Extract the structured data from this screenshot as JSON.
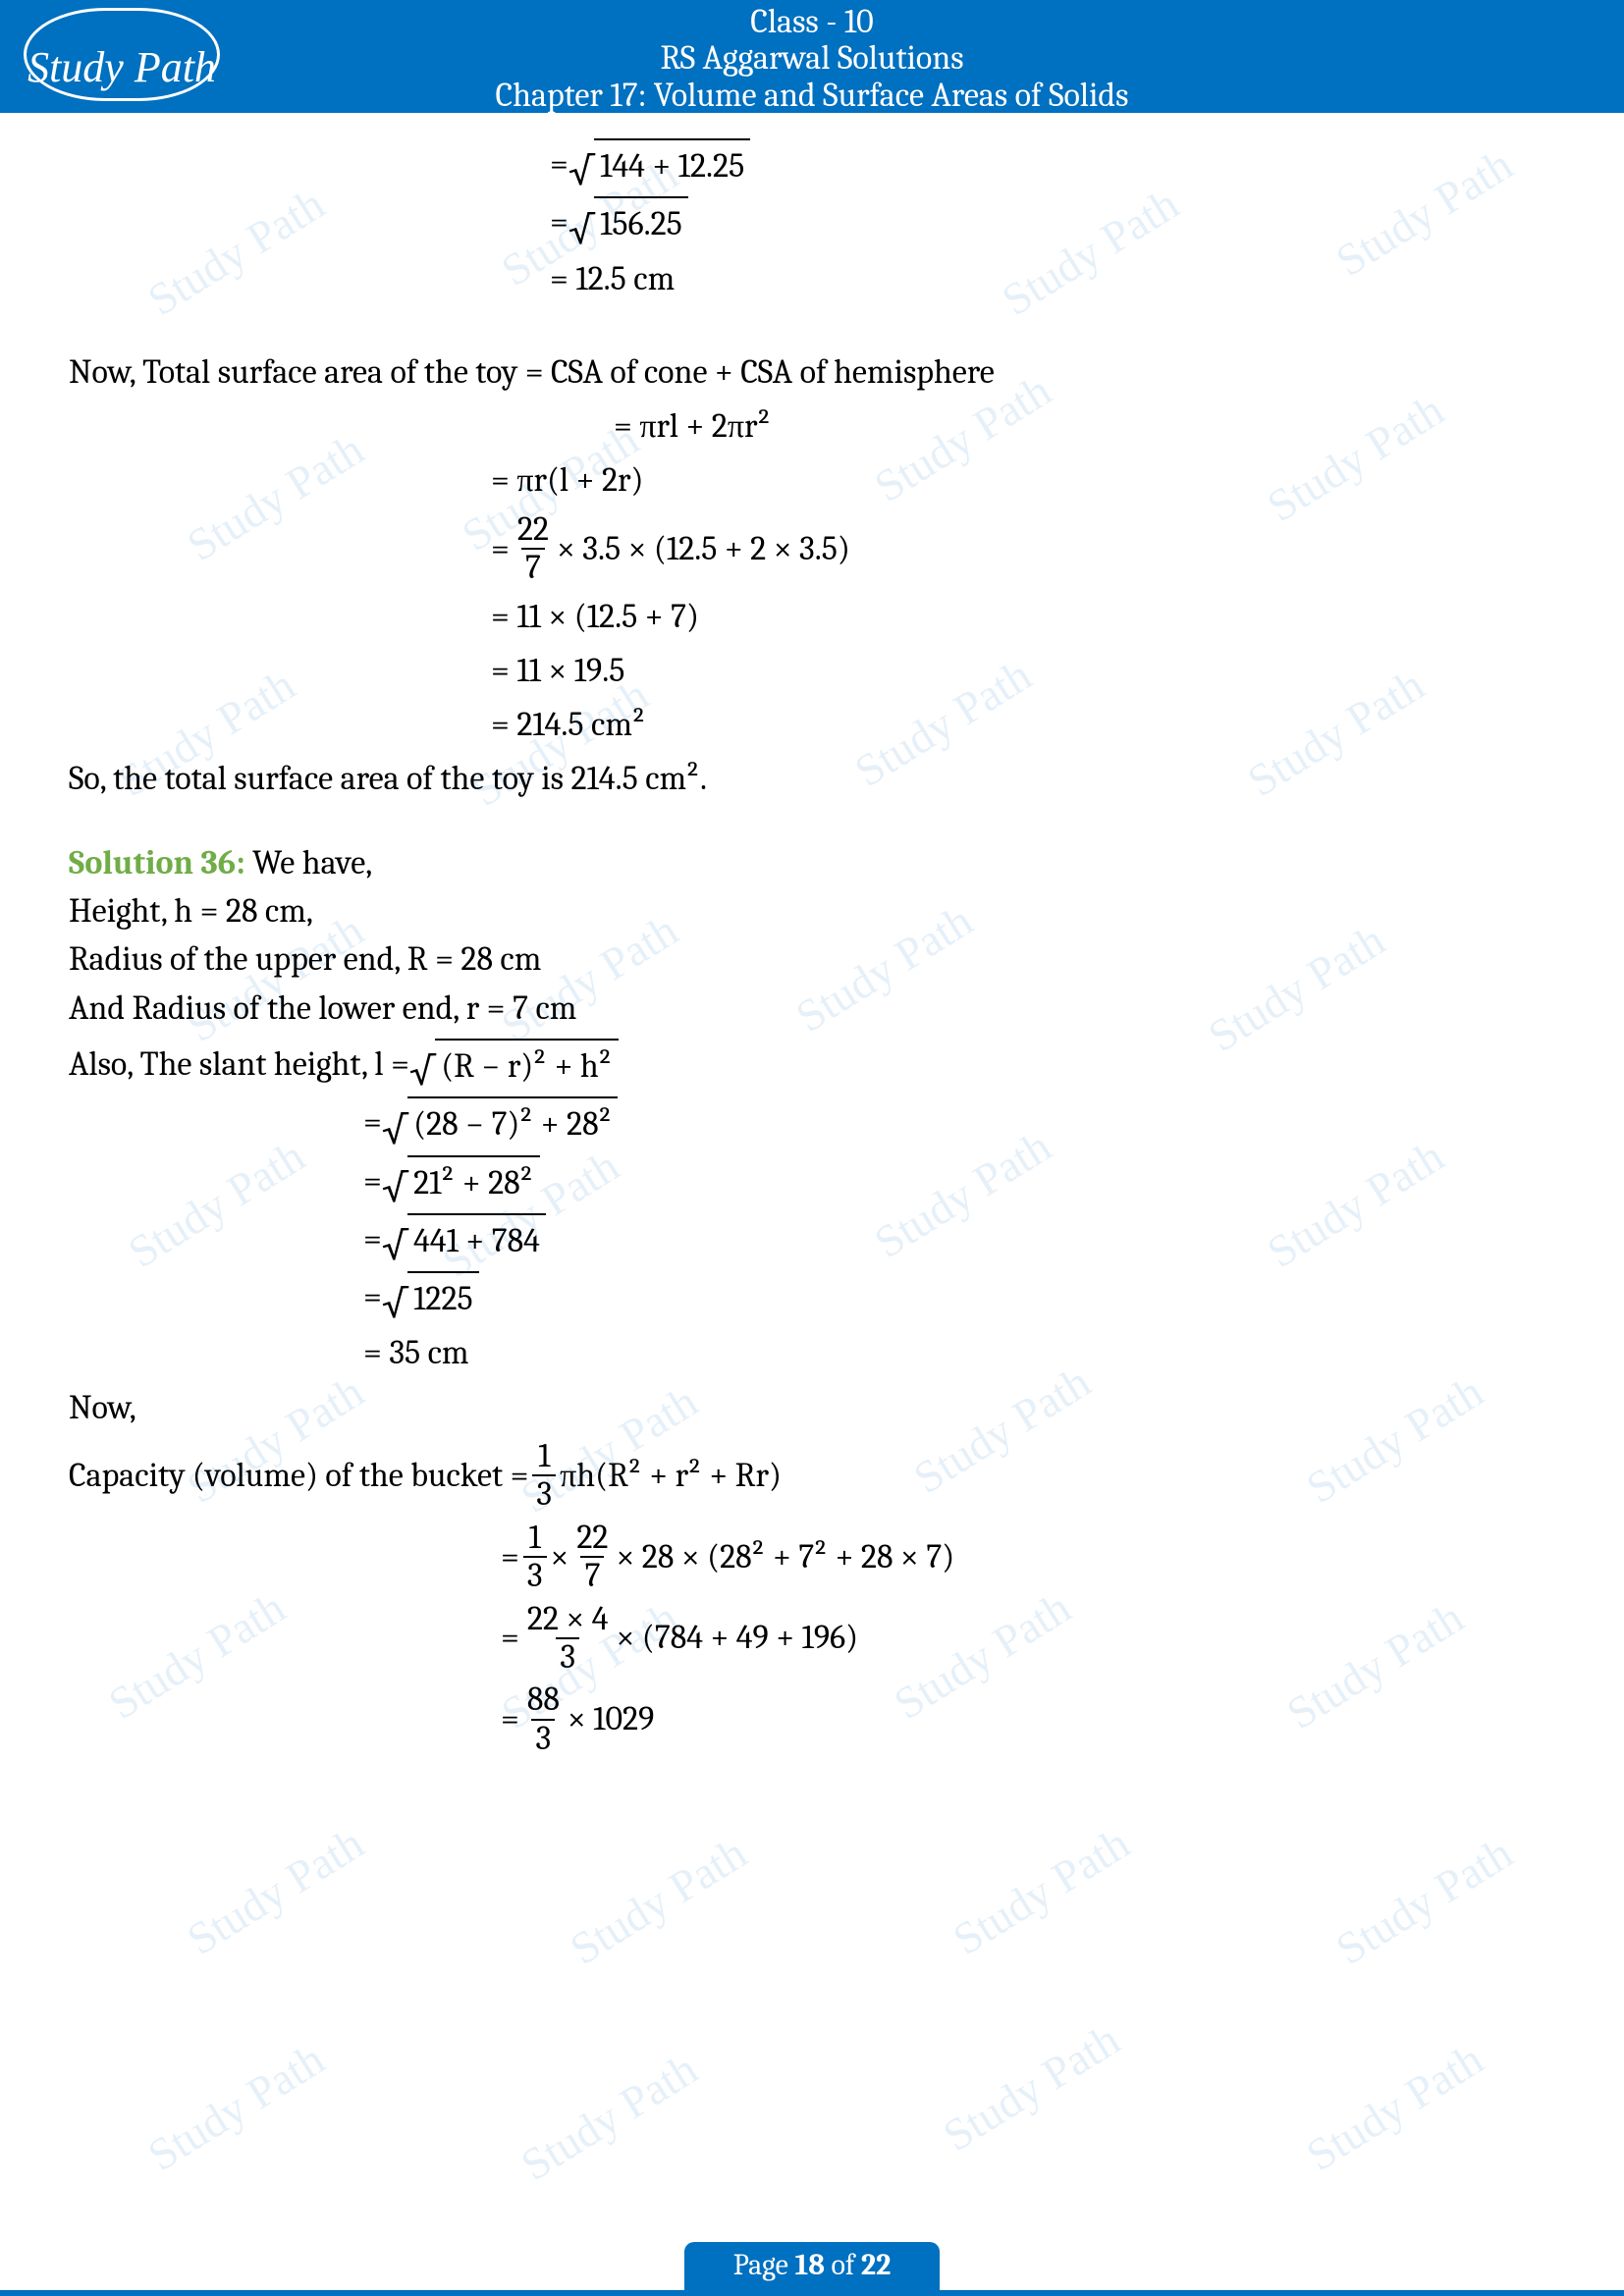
{
  "header": {
    "class": "Class - 10",
    "book": "RS Aggarwal Solutions",
    "chapter": "Chapter 17: Volume and Surface Areas of Solids",
    "logo": "Study Path"
  },
  "calc1": {
    "line1a": "= ",
    "line1b": "144 + 12.25",
    "line2a": "= ",
    "line2b": "156.25",
    "line3": "= 12.5 cm"
  },
  "tsa": {
    "intro": "Now, Total surface area of the toy = CSA of cone + CSA of hemisphere",
    "e1": "= πrl + 2πr²",
    "e2": "= πr(l + 2r)",
    "e3a": "= ",
    "e3num": "22",
    "e3den": "7",
    "e3b": " × 3.5 × (12.5 + 2 × 3.5)",
    "e4": "= 11 × (12.5 + 7)",
    "e5": "= 11 × 19.5",
    "e6": "= 214.5 cm²",
    "conclusion": "So, the total surface area of the toy is 214.5 cm²."
  },
  "sol36": {
    "label": "Solution 36:",
    "intro": " We have,",
    "height": "Height, h = 28 cm,",
    "radiusR": "Radius of the upper end, R = 28 cm",
    "radiusr": "And Radius of the lower end, r = 7 cm",
    "slant_label": "Also, The slant height,  l = ",
    "slant_body": "(R − r)² + h²",
    "s1": "(28 − 7)² + 28²",
    "s2": "21² + 28²",
    "s3": "441 + 784",
    "s4": "1225",
    "s5": "= 35 cm",
    "now": "Now,",
    "cap_label": "Capacity (volume) of the bucket = ",
    "cap_f1n": "1",
    "cap_f1d": "3",
    "cap_body": "πh(R² + r² + Rr)",
    "c2a": "= ",
    "c2f1n": "1",
    "c2f1d": "3",
    "c2mid": " × ",
    "c2f2n": "22",
    "c2f2d": "7",
    "c2b": " × 28 × (28² + 7² + 28 × 7)",
    "c3a": "= ",
    "c3n": "22 × 4",
    "c3d": "3",
    "c3b": " × (784 + 49 + 196)",
    "c4a": "= ",
    "c4n": "88",
    "c4d": "3",
    "c4b": " × 1029"
  },
  "footer": {
    "pre": "Page ",
    "cur": "18",
    "mid": " of ",
    "total": "22"
  },
  "watermark_text": "Study Path"
}
